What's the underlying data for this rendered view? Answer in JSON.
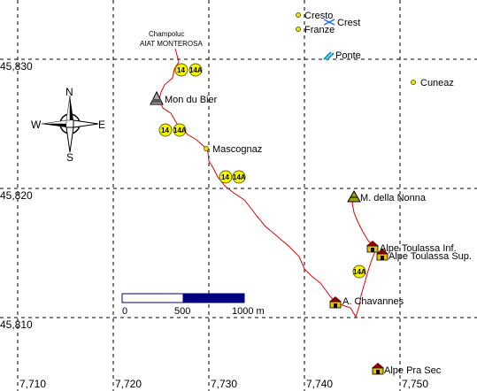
{
  "map": {
    "lat_labels": [
      "45,830",
      "45,820",
      "45,810"
    ],
    "lon_labels": [
      "7,710",
      "7,720",
      "7,730",
      "7,740",
      "7,750"
    ],
    "compass": {
      "n": "N",
      "s": "S",
      "e": "E",
      "w": "W"
    },
    "scale": {
      "labels": [
        "0",
        "500",
        "1000 m"
      ]
    },
    "route_color": "#e00000",
    "places": {
      "champoluc": "Champoluc",
      "aiat": "AIAT MONTEROSA",
      "cresto": "Cresto",
      "crest": "Crest",
      "franze": "Franze",
      "ponte": "Ponte",
      "cuneaz": "Cuneaz",
      "mon_du_bier": "Mon du Bier",
      "mascognaz": "Mascognaz",
      "m_nonna": "M. della Nonna",
      "toulassa_inf": "Alpe Toulassa Inf.",
      "toulassa_sup": "Alpe Toulassa Sup.",
      "chavannes": "A. Chavannes",
      "pra_sec": "Alpe Pra Sec"
    },
    "trail_badges": [
      "14",
      "14A"
    ]
  }
}
